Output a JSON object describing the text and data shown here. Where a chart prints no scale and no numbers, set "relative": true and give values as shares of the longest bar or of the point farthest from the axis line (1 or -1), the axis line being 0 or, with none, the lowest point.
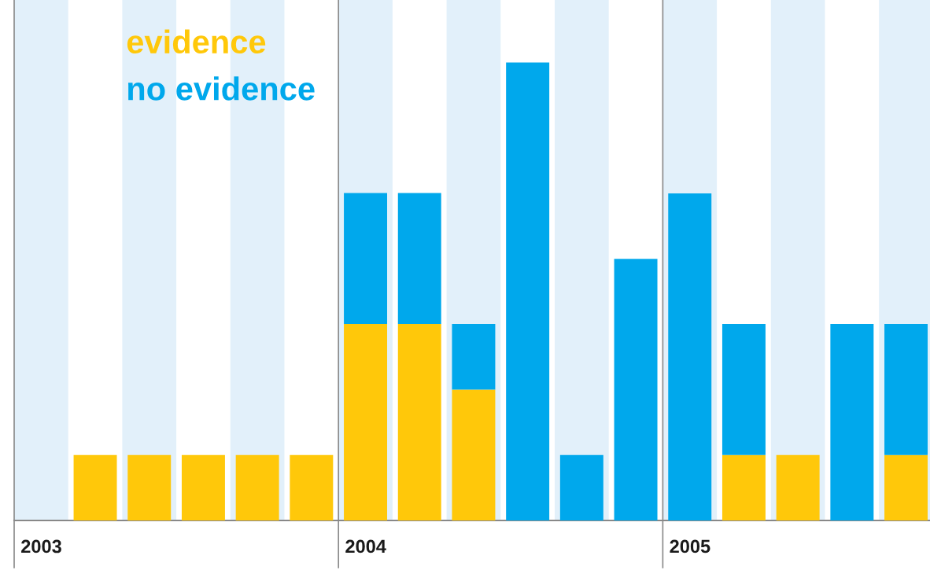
{
  "chart_data": {
    "type": "bar",
    "stacked": true,
    "relative": true,
    "legend": "top left",
    "categories": [
      "2003",
      null,
      null,
      null,
      null,
      null,
      "2004",
      null,
      null,
      null,
      null,
      null,
      "2005",
      null,
      null,
      null,
      null
    ],
    "series": [
      {
        "name": "evidence",
        "color": "#ffc80a",
        "values": [
          0,
          0.143,
          0.143,
          0.143,
          0.143,
          0.143,
          0.429,
          0.429,
          0.286,
          0,
          0,
          0,
          0,
          0.143,
          0.143,
          0,
          0.143
        ]
      },
      {
        "name": "no evidence",
        "color": "#00a8ec",
        "values": [
          0,
          0,
          0,
          0,
          0,
          0,
          0.286,
          0.286,
          0.143,
          1,
          0.143,
          0.571,
          0.714,
          0.286,
          0,
          0.429,
          0.286
        ]
      }
    ]
  }
}
